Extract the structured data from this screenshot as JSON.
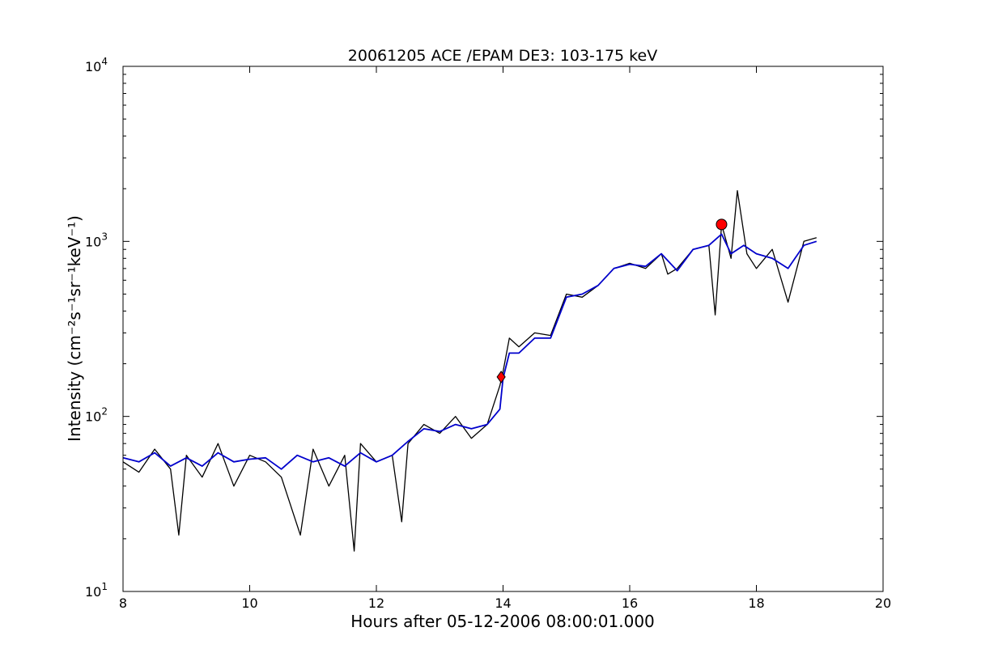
{
  "chart_data": {
    "type": "line",
    "title": "20061205 ACE /EPAM DE3: 103-175 keV",
    "xlabel": "Hours after 05-12-2006 08:00:01.000",
    "ylabel": "Intensity (cm⁻²s⁻¹sr⁻¹keV⁻¹)",
    "xlim": [
      8,
      20
    ],
    "ylim": [
      10,
      10000
    ],
    "yscale": "log",
    "grid": false,
    "x_ticks": [
      8,
      10,
      12,
      14,
      16,
      18,
      20
    ],
    "x_tick_labels": [
      "8",
      "10",
      "12",
      "14",
      "16",
      "18",
      "20"
    ],
    "y_ticks": [
      10,
      100,
      1000,
      10000
    ],
    "y_tick_base": "10",
    "y_tick_exponents": [
      "1",
      "2",
      "3",
      "4"
    ],
    "series": [
      {
        "color": "#000000",
        "x": [
          8.0,
          8.25,
          8.5,
          8.75,
          8.88,
          9.0,
          9.25,
          9.5,
          9.75,
          10.0,
          10.25,
          10.5,
          10.8,
          11.0,
          11.25,
          11.5,
          11.65,
          11.75,
          12.0,
          12.25,
          12.4,
          12.5,
          12.75,
          13.0,
          13.25,
          13.5,
          13.75,
          13.95,
          14.0,
          14.1,
          14.25,
          14.5,
          14.75,
          15.0,
          15.25,
          15.5,
          15.75,
          16.0,
          16.25,
          16.5,
          16.6,
          16.75,
          17.0,
          17.25,
          17.35,
          17.45,
          17.6,
          17.7,
          17.85,
          18.0,
          18.25,
          18.5,
          18.75,
          18.95
        ],
        "y": [
          55,
          48,
          65,
          50,
          21,
          60,
          45,
          70,
          40,
          60,
          55,
          45,
          21,
          65,
          40,
          60,
          17,
          70,
          55,
          60,
          25,
          70,
          90,
          80,
          100,
          75,
          90,
          150,
          180,
          280,
          250,
          300,
          290,
          500,
          480,
          560,
          700,
          750,
          700,
          850,
          650,
          700,
          900,
          950,
          380,
          1250,
          800,
          1950,
          850,
          700,
          900,
          450,
          1000,
          1050
        ]
      },
      {
        "color": "#0000cc",
        "x": [
          8.0,
          8.25,
          8.5,
          8.75,
          9.0,
          9.25,
          9.5,
          9.75,
          10.0,
          10.25,
          10.5,
          10.75,
          11.0,
          11.25,
          11.5,
          11.75,
          12.0,
          12.25,
          12.5,
          12.75,
          13.0,
          13.25,
          13.5,
          13.75,
          13.95,
          14.0,
          14.1,
          14.25,
          14.5,
          14.75,
          15.0,
          15.25,
          15.5,
          15.75,
          16.0,
          16.25,
          16.5,
          16.75,
          17.0,
          17.25,
          17.45,
          17.6,
          17.8,
          18.0,
          18.25,
          18.5,
          18.75,
          18.95
        ],
        "y": [
          58,
          55,
          62,
          52,
          58,
          52,
          62,
          55,
          57,
          58,
          50,
          60,
          55,
          58,
          52,
          62,
          55,
          60,
          72,
          85,
          82,
          90,
          85,
          90,
          110,
          165,
          230,
          230,
          280,
          280,
          480,
          500,
          560,
          700,
          740,
          720,
          850,
          680,
          900,
          950,
          1100,
          850,
          950,
          850,
          800,
          700,
          950,
          1000
        ]
      }
    ],
    "markers": [
      {
        "shape": "diamond",
        "x": 13.97,
        "y": 168,
        "color": "#ff0000"
      },
      {
        "shape": "circle",
        "x": 17.45,
        "y": 1250,
        "color": "#ff0000"
      }
    ]
  }
}
